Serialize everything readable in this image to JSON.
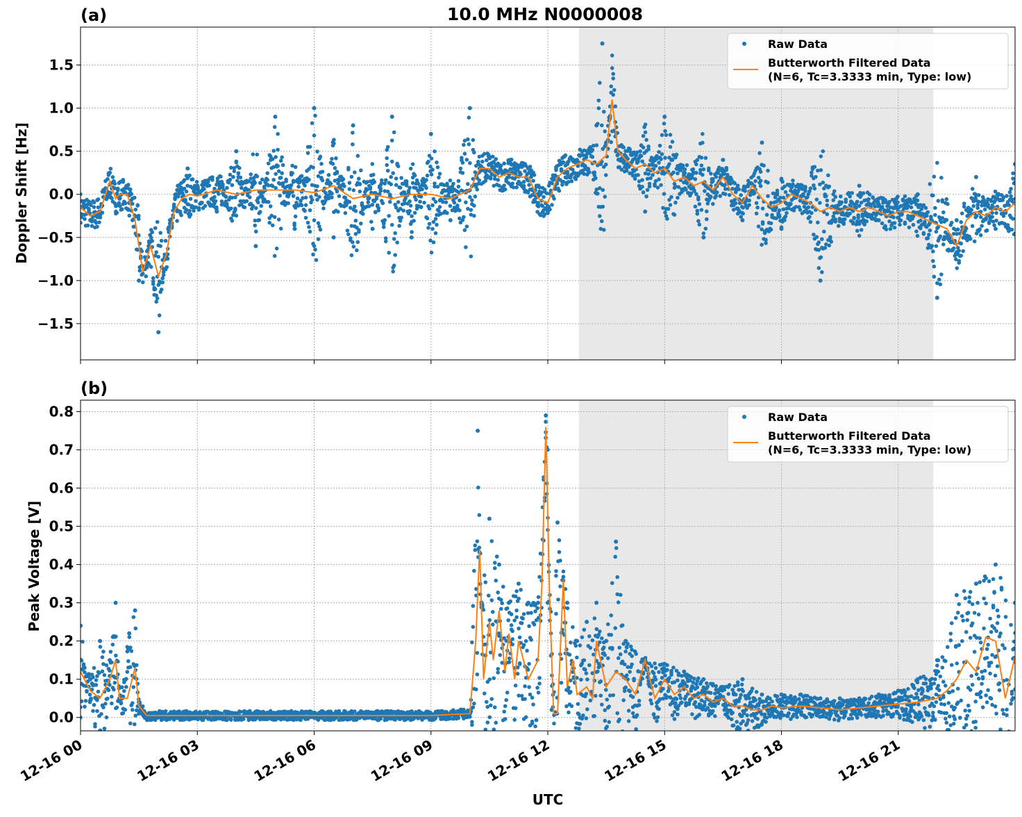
{
  "figure": {
    "title": "10.0 MHz N0000008"
  },
  "colors": {
    "raw": "#1f77b4",
    "filtered": "#ff7f0e",
    "shade": "#e8e8e8",
    "grid": "#b0b0b0"
  },
  "chart_data": [
    {
      "type": "scatter",
      "panel_label": "(a)",
      "title": "10.0 MHz N0000008",
      "xlabel": "",
      "ylabel": "Doppler Shift [Hz]",
      "xlim": [
        0,
        24
      ],
      "ylim": [
        -1.92,
        1.94
      ],
      "yticks": [
        -1.5,
        -1.0,
        -0.5,
        0.0,
        0.5,
        1.0,
        1.5
      ],
      "ytick_labels": [
        "−1.5",
        "−1.0",
        "−0.5",
        "0.0",
        "0.5",
        "1.0",
        "1.5"
      ],
      "grid": true,
      "shaded_region": [
        12.8,
        21.9
      ],
      "legend": {
        "placement": "top-right",
        "entries": [
          "Raw Data",
          "Butterworth Filtered Data",
          "(N=6, Tc=3.3333 min, Type: low)"
        ]
      },
      "series": [
        {
          "name": "Raw Data",
          "style": "points",
          "x": [
            0.0,
            0.25,
            0.5,
            0.75,
            1.0,
            1.25,
            1.5,
            1.75,
            2.0,
            2.25,
            2.5,
            2.75,
            3.0,
            3.5,
            4.0,
            4.5,
            5.0,
            5.5,
            6.0,
            6.5,
            7.0,
            7.5,
            8.0,
            8.5,
            9.0,
            9.5,
            10.0,
            10.25,
            10.5,
            11.0,
            11.5,
            11.75,
            12.0,
            12.25,
            12.5,
            12.75,
            13.0,
            13.25,
            13.4,
            13.5,
            13.75,
            14.0,
            14.5,
            15.0,
            15.5,
            16.0,
            16.5,
            17.0,
            17.5,
            18.0,
            18.5,
            19.0,
            19.5,
            20.0,
            20.5,
            21.0,
            21.5,
            22.0,
            22.5,
            23.0,
            23.5,
            24.0
          ],
          "y": [
            -0.15,
            -0.3,
            -0.2,
            0.25,
            -0.05,
            -0.1,
            -1.0,
            -0.6,
            -1.6,
            -0.4,
            0.1,
            0.3,
            0.1,
            -0.2,
            0.5,
            -0.6,
            0.9,
            -0.4,
            1.0,
            -0.5,
            0.8,
            -0.4,
            0.9,
            -0.5,
            0.7,
            -0.3,
            1.0,
            0.3,
            0.35,
            0.2,
            0.3,
            -0.1,
            -0.2,
            0.2,
            0.35,
            0.4,
            0.3,
            0.8,
            1.75,
            0.6,
            0.5,
            0.4,
            -0.2,
            0.9,
            0.2,
            -0.5,
            0.4,
            -0.3,
            0.6,
            -0.4,
            0.1,
            -1.0,
            -0.2,
            0.1,
            -0.3,
            -0.2,
            0.0,
            -1.2,
            -0.3,
            0.2,
            -0.4,
            0.35
          ]
        },
        {
          "name": "Butterworth Filtered Data",
          "style": "line",
          "x": [
            0.0,
            0.25,
            0.5,
            0.75,
            0.9,
            1.0,
            1.2,
            1.4,
            1.6,
            1.8,
            2.0,
            2.2,
            2.4,
            2.6,
            2.8,
            3.0,
            3.5,
            4.0,
            4.5,
            5.0,
            5.5,
            6.0,
            6.5,
            7.0,
            7.5,
            8.0,
            8.5,
            9.0,
            9.5,
            10.0,
            10.25,
            10.5,
            10.75,
            11.0,
            11.25,
            11.5,
            11.75,
            12.0,
            12.25,
            12.5,
            12.75,
            13.0,
            13.25,
            13.5,
            13.65,
            13.8,
            14.0,
            14.25,
            14.5,
            14.75,
            15.0,
            15.25,
            15.5,
            15.75,
            16.0,
            16.25,
            16.5,
            16.75,
            17.0,
            17.25,
            17.5,
            17.75,
            18.0,
            18.25,
            18.5,
            18.75,
            19.0,
            19.25,
            19.5,
            19.75,
            20.0,
            20.25,
            20.5,
            20.75,
            21.0,
            21.25,
            21.5,
            21.75,
            22.0,
            22.25,
            22.5,
            22.75,
            23.0,
            23.25,
            23.5,
            23.75,
            24.0
          ],
          "y": [
            -0.15,
            -0.25,
            -0.2,
            0.15,
            -0.05,
            0.0,
            0.0,
            -0.3,
            -0.9,
            -0.6,
            -0.95,
            -0.7,
            -0.2,
            -0.05,
            0.0,
            -0.02,
            0.05,
            0.0,
            0.05,
            0.05,
            0.05,
            0.02,
            0.1,
            -0.05,
            0.0,
            -0.05,
            0.0,
            0.0,
            -0.05,
            0.05,
            0.3,
            0.3,
            0.2,
            0.25,
            0.2,
            0.2,
            -0.05,
            -0.1,
            0.2,
            0.3,
            0.35,
            0.4,
            0.35,
            0.45,
            1.1,
            0.5,
            0.4,
            0.3,
            0.35,
            0.25,
            0.3,
            0.15,
            0.2,
            0.1,
            0.15,
            0.05,
            0.2,
            0.0,
            -0.1,
            0.1,
            -0.05,
            -0.15,
            -0.1,
            0.0,
            -0.05,
            -0.1,
            -0.2,
            -0.15,
            -0.2,
            -0.15,
            -0.2,
            -0.15,
            -0.2,
            -0.25,
            -0.2,
            -0.2,
            -0.25,
            -0.3,
            -0.35,
            -0.4,
            -0.6,
            -0.3,
            -0.2,
            -0.25,
            -0.15,
            -0.2,
            -0.1
          ]
        }
      ]
    },
    {
      "type": "scatter",
      "panel_label": "(b)",
      "title": "",
      "xlabel": "UTC",
      "ylabel": "Peak Voltage [V]",
      "xlim": [
        0,
        24
      ],
      "ylim": [
        -0.035,
        0.83
      ],
      "xticks": [
        0,
        3,
        6,
        9,
        12,
        15,
        18,
        21
      ],
      "xtick_labels": [
        "12-16 00",
        "12-16 03",
        "12-16 06",
        "12-16 09",
        "12-16 12",
        "12-16 15",
        "12-16 18",
        "12-16 21"
      ],
      "yticks": [
        0.0,
        0.1,
        0.2,
        0.3,
        0.4,
        0.5,
        0.6,
        0.7,
        0.8
      ],
      "ytick_labels": [
        "0.0",
        "0.1",
        "0.2",
        "0.3",
        "0.4",
        "0.5",
        "0.6",
        "0.7",
        "0.8"
      ],
      "grid": true,
      "shaded_region": [
        12.8,
        21.9
      ],
      "legend": {
        "placement": "top-right",
        "entries": [
          "Raw Data",
          "Butterworth Filtered Data",
          "(N=6, Tc=3.3333 min, Type: low)"
        ]
      },
      "series": [
        {
          "name": "Raw Data",
          "style": "points",
          "x": [
            0.0,
            0.25,
            0.5,
            0.75,
            0.9,
            1.0,
            1.25,
            1.4,
            1.5,
            2.0,
            3.0,
            4.0,
            6.0,
            8.0,
            9.0,
            10.0,
            10.2,
            10.3,
            10.5,
            10.75,
            11.0,
            11.25,
            11.5,
            11.75,
            11.95,
            12.0,
            12.1,
            12.25,
            12.5,
            12.75,
            13.0,
            13.25,
            13.5,
            13.75,
            14.0,
            14.5,
            15.0,
            15.5,
            16.0,
            16.5,
            17.0,
            17.5,
            18.0,
            18.5,
            19.0,
            19.5,
            20.0,
            20.5,
            21.0,
            21.5,
            22.0,
            22.5,
            23.0,
            23.5,
            24.0
          ],
          "y": [
            0.24,
            0.1,
            0.2,
            0.15,
            0.3,
            0.05,
            0.22,
            0.28,
            0.01,
            0.0,
            0.01,
            0.0,
            0.0,
            0.0,
            0.0,
            0.01,
            0.75,
            0.3,
            0.52,
            0.4,
            0.3,
            0.35,
            0.3,
            0.3,
            0.79,
            0.3,
            0.02,
            0.51,
            0.3,
            0.2,
            0.25,
            0.3,
            0.2,
            0.46,
            0.2,
            0.15,
            0.14,
            0.12,
            0.1,
            0.08,
            0.1,
            0.06,
            0.06,
            0.06,
            0.05,
            0.05,
            0.05,
            0.06,
            0.07,
            0.1,
            0.15,
            0.32,
            0.35,
            0.4,
            0.3
          ]
        },
        {
          "name": "Butterworth Filtered Data",
          "style": "line",
          "x": [
            0.0,
            0.25,
            0.5,
            0.75,
            0.9,
            1.0,
            1.2,
            1.4,
            1.5,
            1.7,
            2.0,
            3.0,
            4.0,
            5.0,
            6.0,
            7.0,
            8.0,
            9.0,
            10.0,
            10.15,
            10.25,
            10.35,
            10.5,
            10.6,
            10.75,
            10.9,
            11.0,
            11.15,
            11.25,
            11.5,
            11.75,
            11.85,
            11.95,
            12.05,
            12.15,
            12.25,
            12.4,
            12.5,
            12.65,
            12.75,
            13.0,
            13.15,
            13.25,
            13.5,
            13.75,
            14.0,
            14.25,
            14.5,
            14.75,
            15.0,
            15.25,
            15.5,
            15.75,
            16.0,
            16.25,
            16.5,
            16.75,
            17.0,
            17.25,
            17.5,
            17.75,
            18.0,
            18.5,
            19.0,
            19.5,
            20.0,
            20.5,
            21.0,
            21.5,
            22.0,
            22.25,
            22.5,
            22.75,
            23.0,
            23.25,
            23.5,
            23.75,
            24.0
          ],
          "y": [
            0.12,
            0.07,
            0.05,
            0.1,
            0.15,
            0.05,
            0.05,
            0.13,
            0.03,
            0.005,
            0.005,
            0.005,
            0.005,
            0.005,
            0.005,
            0.005,
            0.005,
            0.005,
            0.01,
            0.2,
            0.44,
            0.1,
            0.25,
            0.15,
            0.28,
            0.12,
            0.22,
            0.1,
            0.2,
            0.1,
            0.15,
            0.35,
            0.76,
            0.3,
            0.01,
            0.01,
            0.36,
            0.08,
            0.15,
            0.06,
            0.08,
            0.05,
            0.2,
            0.08,
            0.12,
            0.1,
            0.06,
            0.15,
            0.05,
            0.1,
            0.06,
            0.08,
            0.05,
            0.06,
            0.04,
            0.05,
            0.03,
            0.03,
            0.02,
            0.02,
            0.03,
            0.025,
            0.03,
            0.025,
            0.02,
            0.025,
            0.03,
            0.035,
            0.04,
            0.05,
            0.07,
            0.1,
            0.15,
            0.12,
            0.21,
            0.2,
            0.05,
            0.16
          ]
        }
      ]
    }
  ]
}
